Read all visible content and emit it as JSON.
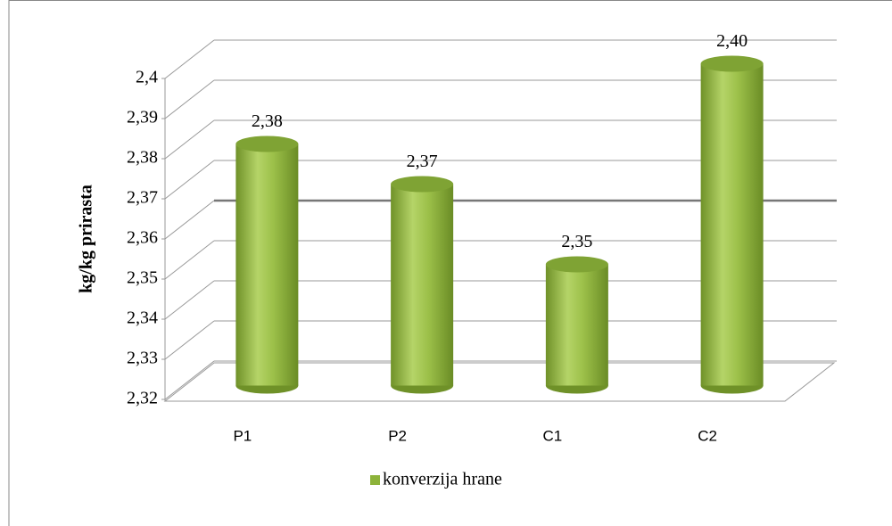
{
  "chart_data": {
    "type": "bar",
    "y_label": "kg/kg prirasta",
    "categories": [
      "P1",
      "P2",
      "C1",
      "C2"
    ],
    "series": [
      {
        "name": "konverzija hrane",
        "color": "#8db33a",
        "values": [
          2.38,
          2.37,
          2.35,
          2.4
        ],
        "value_labels": [
          "2,38",
          "2,37",
          "2,35",
          "2,40"
        ]
      }
    ],
    "ylim": [
      2.32,
      2.4
    ],
    "yticks": [
      {
        "value": 2.32,
        "label": "2,32"
      },
      {
        "value": 2.33,
        "label": "2,33"
      },
      {
        "value": 2.34,
        "label": "2,34"
      },
      {
        "value": 2.35,
        "label": "2,35"
      },
      {
        "value": 2.36,
        "label": "2,36"
      },
      {
        "value": 2.37,
        "label": "2,37"
      },
      {
        "value": 2.38,
        "label": "2,38"
      },
      {
        "value": 2.39,
        "label": "2,39"
      },
      {
        "value": 2.4,
        "label": "2,4"
      }
    ],
    "grid": true
  }
}
